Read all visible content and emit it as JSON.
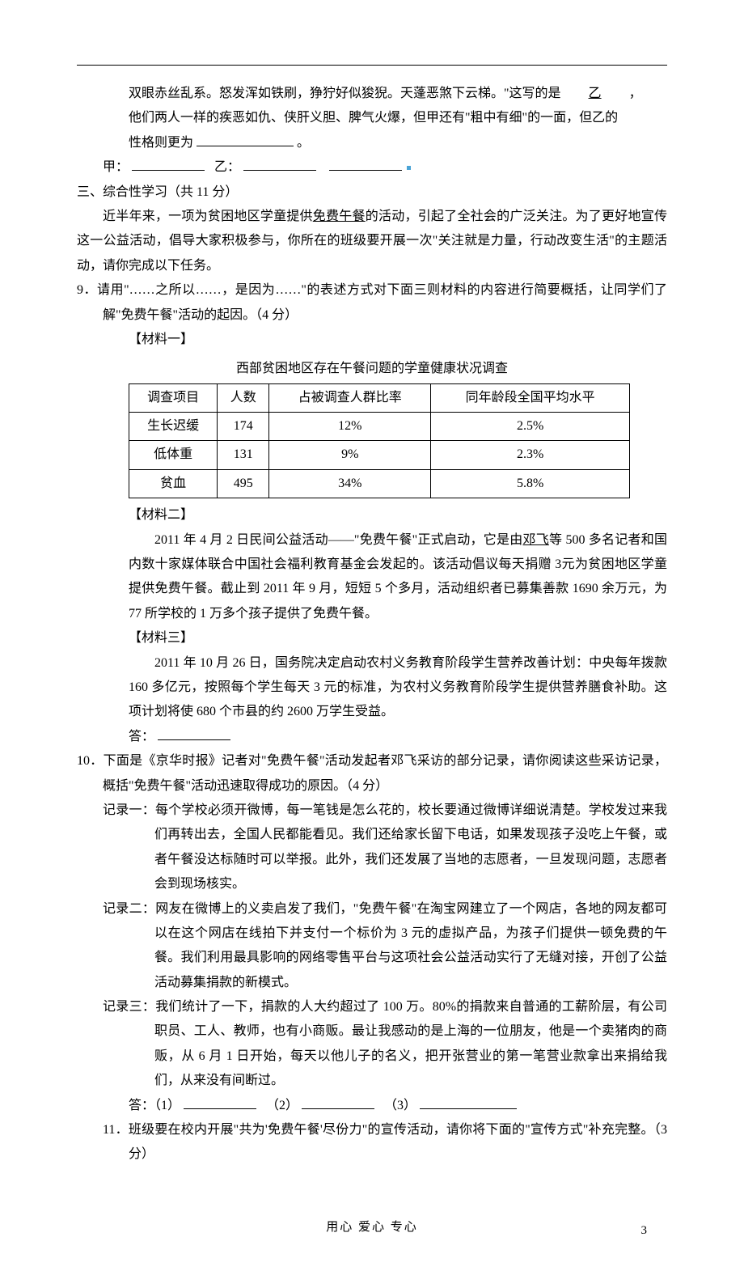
{
  "top": {
    "l1a": "双眼赤丝乱系。怒发浑如铁刷，狰狞好似狻猊。天蓬恶煞下云梯。\"这写的是",
    "l1b": "乙",
    "l1c": "，",
    "l2": "他们两人一样的疾恶如仇、侠肝义胆、脾气火爆，但甲还有\"粗中有细\"的一面，但乙的",
    "l3a": "性格则更为",
    "l3b": "。",
    "l4a": "甲：",
    "l4b": "乙：",
    "dotColor": "#4aa3d6"
  },
  "sec3": {
    "title": "三、综合性学习（共 11 分）",
    "p1": "近半年来，一项为贫困地区学童提供",
    "p1u": "免费午餐",
    "p1b": "的活动，引起了全社会的广泛关注。为了更好地宣传这一公益活动，倡导大家积极参与，你所在的班级要开展一次\"关注就是力量，行动改变生活\"的主题活动，请你完成以下任务。"
  },
  "q9": {
    "stem": "9．请用\"……之所以……，是因为……\"的表述方式对下面三则材料的内容进行简要概括，让同学们了解\"免费午餐\"活动的起因。（4 分）",
    "m1": "【材料一】",
    "tableTitle": "西部贫困地区存在午餐问题的学童健康状况调查",
    "table": {
      "columns": [
        "调查项目",
        "人数",
        "占被调查人群比率",
        "同年龄段全国平均水平"
      ],
      "rows": [
        [
          "生长迟缓",
          "174",
          "12%",
          "2.5%"
        ],
        [
          "低体重",
          "131",
          "9%",
          "2.3%"
        ],
        [
          "贫血",
          "495",
          "34%",
          "5.8%"
        ]
      ],
      "borderColor": "#000000",
      "cellFontSize": 16
    },
    "m2": "【材料二】",
    "m2p_a": "2011 年 4 月 2 日民间公益活动——\"免费午餐\"正式启动，它是由",
    "m2p_u": "邓飞",
    "m2p_b": "等 500 多名记者和国内数十家媒体联合中国社会福利教育基金会发起的。该活动倡议每天捐赠 3元为贫困地区学童提供免费午餐。截止到 2011 年 9 月，短短 5 个多月，活动组织者已募集善款 1690 余万元，为 77 所学校的 1 万多个孩子提供了免费午餐。",
    "m3": "【材料三】",
    "m3p": "2011 年 10 月 26 日，国务院决定启动农村义务教育阶段学生营养改善计划：中央每年拨款 160 多亿元，按照每个学生每天 3 元的标准，为农村义务教育阶段学生提供营养膳食补助。这项计划将使 680 个市县的约 2600 万学生受益。",
    "ans": "答："
  },
  "q10": {
    "stem": "10．下面是《京华时报》记者对\"免费午餐\"活动发起者邓飞采访的部分记录，请你阅读这些采访记录，概括\"免费午餐\"活动迅速取得成功的原因。（4 分）",
    "r1": "记录一：每个学校必须开微博，每一笔钱是怎么花的，校长要通过微博详细说清楚。学校发过来我们再转出去，全国人民都能看见。我们还给家长留下电话，如果发现孩子没吃上午餐，或者午餐没达标随时可以举报。此外，我们还发展了当地的志愿者，一旦发现问题，志愿者会到现场核实。",
    "r2": "记录二：网友在微博上的义卖启发了我们，\"免费午餐\"在淘宝网建立了一个网店，各地的网友都可以在这个网店在线拍下并支付一个标价为 3 元的虚拟产品，为孩子们提供一顿免费的午餐。我们利用最具影响的网络零售平台与这项社会公益活动实行了无缝对接，开创了公益活动募集捐款的新模式。",
    "r3": "记录三：我们统计了一下，捐款的人大约超过了 100 万。80%的捐款来自普通的工薪阶层，有公司职员、工人、教师，也有小商贩。最让我感动的是上海的一位朋友，他是一个卖猪肉的商贩，从 6 月 1 日开始，每天以他儿子的名义，把开张营业的第一笔营业款拿出来捐给我们，从来没有间断过。",
    "ans_a": "答：（1）",
    "ans_b": "（2）",
    "ans_c": "（3）"
  },
  "q11": {
    "stem": "11．班级要在校内开展\"共为'免费午餐'尽份力\"的宣传活动，请你将下面的\"宣传方式\"补充完整。（3 分）"
  },
  "footer": {
    "text": "用心   爱心   专心",
    "page": "3"
  },
  "style": {
    "background": "#ffffff",
    "textColor": "#000000",
    "fontSize": 16,
    "lineHeight": 1.9,
    "pageWidth": 920,
    "pageHeight": 1302
  }
}
